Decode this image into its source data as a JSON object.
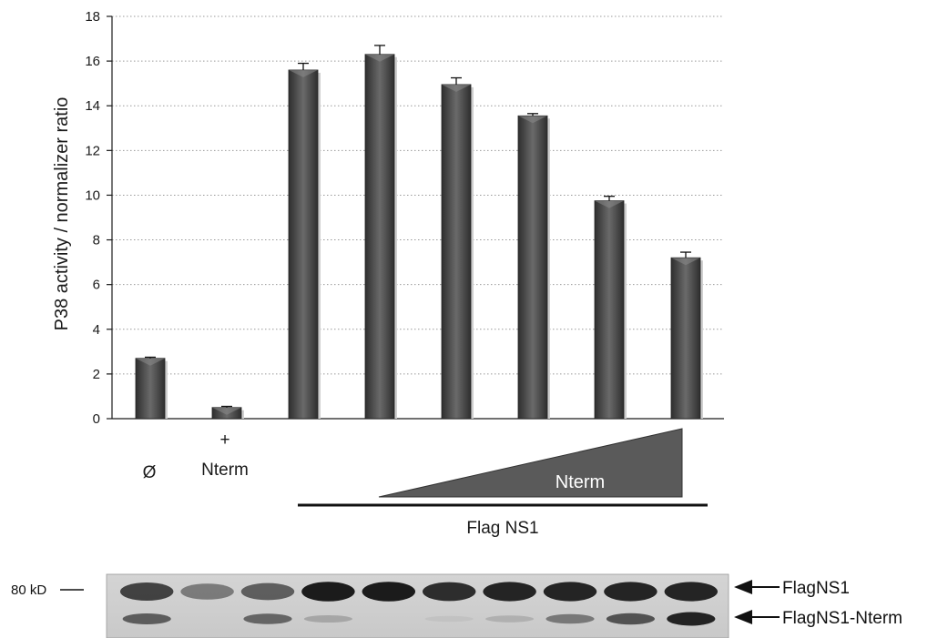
{
  "chart_data": {
    "type": "bar",
    "ylabel": "P38 activity / normalizer ratio",
    "ylim": [
      0,
      18
    ],
    "yticks": [
      0,
      2,
      4,
      6,
      8,
      10,
      12,
      14,
      16,
      18
    ],
    "grid": true,
    "categories": [
      "Ø",
      "+ Nterm",
      "",
      "",
      "",
      "",
      "",
      ""
    ],
    "values": [
      2.7,
      0.5,
      15.6,
      16.3,
      14.95,
      13.55,
      9.75,
      7.2
    ],
    "errors": [
      0.05,
      0.05,
      0.3,
      0.4,
      0.3,
      0.1,
      0.2,
      0.25
    ],
    "bar_color": "#4a4a4a"
  },
  "annotations": {
    "cat_0": "Ø",
    "cat_1_line1": "+",
    "cat_1_line2": "Nterm",
    "gradient_label": "Nterm",
    "group_label": "Flag NS1"
  },
  "blot": {
    "marker_label": "80 kD",
    "band_upper_label": "FlagNS1",
    "band_lower_label": "FlagNS1-Nterm",
    "lanes": [
      {
        "upper": 0.75,
        "lower": 0.6
      },
      {
        "upper": 0.45,
        "lower": 0.0
      },
      {
        "upper": 0.6,
        "lower": 0.55
      },
      {
        "upper": 0.95,
        "lower": 0.2
      },
      {
        "upper": 0.95,
        "lower": 0.0
      },
      {
        "upper": 0.85,
        "lower": 0.05
      },
      {
        "upper": 0.9,
        "lower": 0.15
      },
      {
        "upper": 0.9,
        "lower": 0.45
      },
      {
        "upper": 0.9,
        "lower": 0.65
      },
      {
        "upper": 0.9,
        "lower": 0.9
      }
    ]
  }
}
